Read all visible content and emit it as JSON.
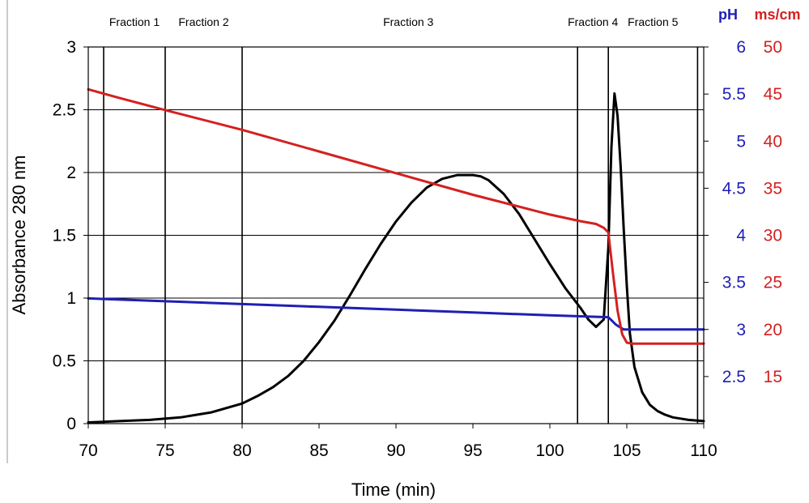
{
  "chart_data": {
    "type": "line",
    "xlabel": "Time (min)",
    "ylabel": "Absorbance 280 nm",
    "xlim": [
      70,
      110
    ],
    "ylim": [
      0,
      3
    ],
    "x_ticks": [
      70,
      75,
      80,
      85,
      90,
      95,
      100,
      105,
      110
    ],
    "y_ticks": [
      0,
      0.5,
      1,
      1.5,
      2,
      2.5,
      3
    ],
    "y_tick_labels": [
      "0",
      "0.5",
      "1",
      "1.5",
      "2",
      "2.5",
      "3"
    ],
    "grid": true,
    "right_axes": [
      {
        "unit": "pH",
        "color": "#1f1fb4",
        "range": [
          2,
          6
        ],
        "ticks": [
          2.5,
          3,
          3.5,
          4,
          4.5,
          5,
          5.5,
          6
        ],
        "tick_labels": [
          "2.5",
          "3",
          "3.5",
          "4",
          "4.5",
          "5",
          "5.5",
          "6"
        ]
      },
      {
        "unit": "ms/cm",
        "color": "#d42020",
        "range": [
          10,
          50
        ],
        "ticks": [
          15,
          20,
          25,
          30,
          35,
          40,
          45,
          50
        ],
        "tick_labels": [
          "15",
          "20",
          "25",
          "30",
          "35",
          "40",
          "45",
          "50"
        ]
      }
    ],
    "fraction_boundaries": [
      71,
      75,
      80,
      101.8,
      103.8,
      109.6
    ],
    "fractions": [
      {
        "label": "Fraction 1",
        "center": 73
      },
      {
        "label": "Fraction 2",
        "center": 77.5
      },
      {
        "label": "Fraction 3",
        "center": 90.8
      },
      {
        "label": "Fraction 4",
        "center": 102.8
      },
      {
        "label": "Fraction 5",
        "center": 106.7
      }
    ],
    "series": [
      {
        "axis": "absorbance",
        "color": "#000000",
        "x": [
          70,
          72,
          74,
          76,
          78,
          80,
          81,
          82,
          83,
          84,
          85,
          86,
          87,
          88,
          89,
          90,
          91,
          92,
          93,
          94,
          95,
          95.5,
          96,
          97,
          98,
          99,
          100,
          101,
          102,
          102.5,
          103,
          103.5,
          103.8,
          104,
          104.2,
          104.4,
          104.6,
          104.8,
          105,
          105.2,
          105.5,
          106,
          106.5,
          107,
          107.5,
          108,
          108.5,
          109,
          110
        ],
        "values": [
          0.01,
          0.02,
          0.03,
          0.05,
          0.09,
          0.16,
          0.22,
          0.29,
          0.38,
          0.5,
          0.65,
          0.82,
          1.02,
          1.23,
          1.43,
          1.61,
          1.76,
          1.88,
          1.95,
          1.98,
          1.98,
          1.97,
          1.94,
          1.83,
          1.67,
          1.47,
          1.27,
          1.08,
          0.92,
          0.83,
          0.77,
          0.83,
          1.4,
          2.2,
          2.63,
          2.45,
          2.05,
          1.55,
          1.1,
          0.72,
          0.45,
          0.25,
          0.15,
          0.1,
          0.07,
          0.05,
          0.04,
          0.03,
          0.02
        ]
      },
      {
        "axis": "pH",
        "color": "#1f1fb4",
        "x": [
          70,
          75,
          80,
          85,
          90,
          95,
          100,
          103.8,
          104.3,
          104.8,
          110
        ],
        "values": [
          3.33,
          3.3,
          3.27,
          3.24,
          3.21,
          3.18,
          3.15,
          3.13,
          3.05,
          3.0,
          3.0
        ]
      },
      {
        "axis": "ms/cm",
        "color": "#d42020",
        "x": [
          70,
          72,
          75,
          80,
          85,
          90,
          95,
          100,
          102,
          103,
          103.5,
          103.8,
          104.1,
          104.4,
          104.7,
          105,
          105.3,
          110
        ],
        "values": [
          45.5,
          44.6,
          43.3,
          41.2,
          38.9,
          36.6,
          34.3,
          32.2,
          31.5,
          31.2,
          30.8,
          30.3,
          26,
          22,
          19.5,
          18.6,
          18.5,
          18.5
        ]
      }
    ]
  }
}
